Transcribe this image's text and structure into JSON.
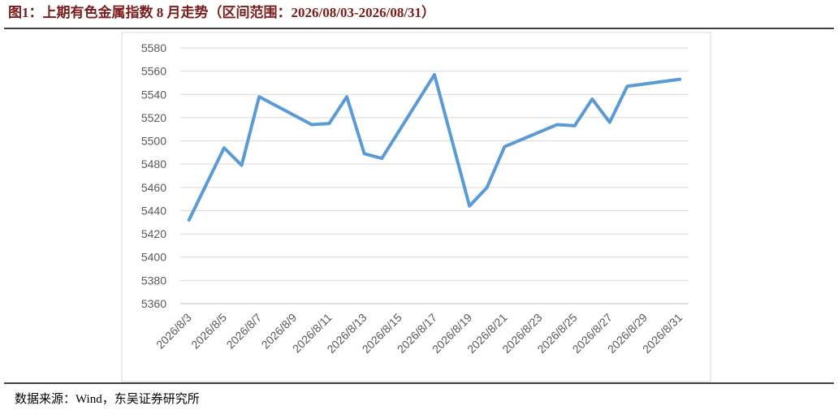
{
  "header": {
    "title": "图1：上期有色金属指数 8 月走势（区间范围：2026/08/03-2026/08/31）"
  },
  "chart_data": {
    "type": "line",
    "x": [
      "2026/8/3",
      "2026/8/5",
      "2026/8/6",
      "2026/8/7",
      "2026/8/10",
      "2026/8/11",
      "2026/8/12",
      "2026/8/13",
      "2026/8/14",
      "2026/8/17",
      "2026/8/19",
      "2026/8/20",
      "2026/8/21",
      "2026/8/24",
      "2026/8/25",
      "2026/8/26",
      "2026/8/27",
      "2026/8/28",
      "2026/8/31"
    ],
    "series": [
      {
        "color": "#5b9bd5",
        "values": [
          5432,
          5494,
          5479,
          5538,
          5514,
          5515,
          5538,
          5489,
          5485,
          5557,
          5444,
          5460,
          5495,
          5514,
          5513,
          5536,
          5516,
          5547,
          5553
        ]
      }
    ],
    "xticks": [
      "2026/8/3",
      "2026/8/5",
      "2026/8/7",
      "2026/8/9",
      "2026/8/11",
      "2026/8/13",
      "2026/8/15",
      "2026/8/17",
      "2026/8/19",
      "2026/8/21",
      "2026/8/23",
      "2026/8/25",
      "2026/8/27",
      "2026/8/29",
      "2026/8/31"
    ],
    "ylim": [
      5360,
      5580
    ],
    "yticks": [
      5360,
      5380,
      5400,
      5420,
      5440,
      5460,
      5480,
      5500,
      5520,
      5540,
      5560,
      5580
    ],
    "grid": true
  },
  "footer": {
    "source": "数据来源：Wind，东吴证券研究所"
  }
}
